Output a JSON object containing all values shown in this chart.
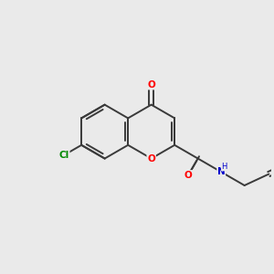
{
  "background_color": "#eaeaea",
  "bond_color": "#3a3a3a",
  "atom_colors": {
    "O": "#ff0000",
    "N": "#0000cc",
    "Cl": "#008800",
    "C": "#3a3a3a"
  },
  "figsize": [
    3.0,
    3.0
  ],
  "dpi": 100
}
